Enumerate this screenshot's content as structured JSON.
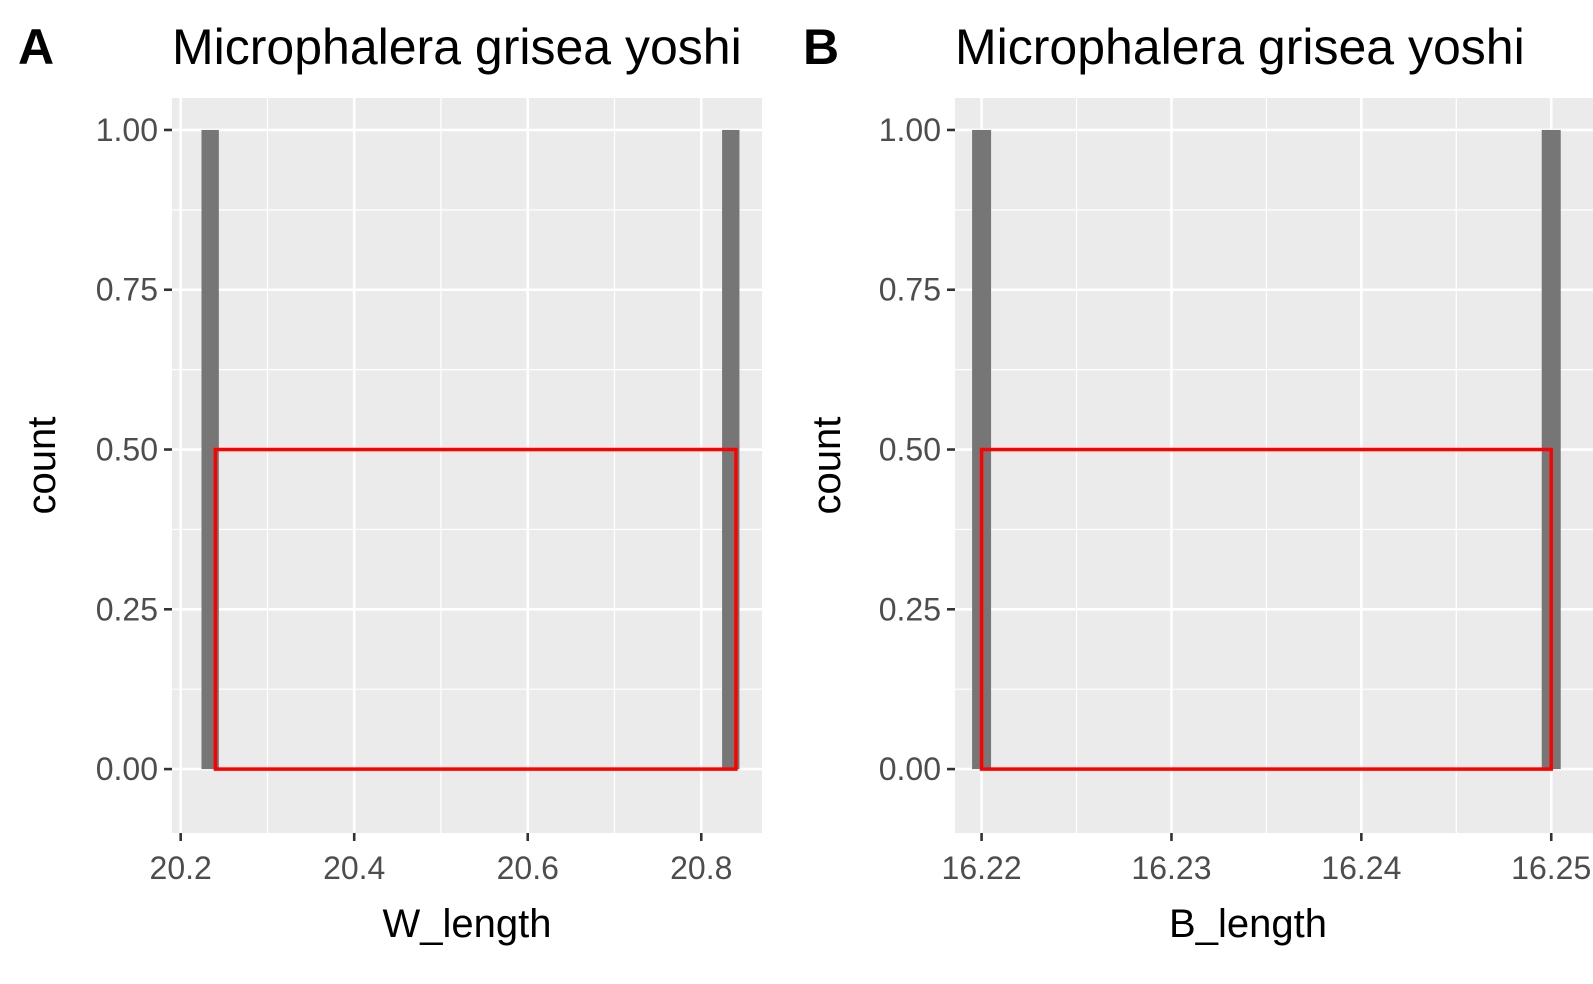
{
  "chart_data": [
    {
      "panel": "A",
      "type": "bar",
      "title": "Microphalera grisea yoshi",
      "xlabel": "W_length",
      "ylabel": "count",
      "xlim": [
        20.19,
        20.87
      ],
      "ylim": [
        -0.1,
        1.05
      ],
      "x_ticks": [
        "20.2",
        "20.4",
        "20.6",
        "20.8"
      ],
      "x_tick_values": [
        20.2,
        20.4,
        20.6,
        20.8
      ],
      "y_ticks": [
        "0.00",
        "0.25",
        "0.50",
        "0.75",
        "1.00"
      ],
      "y_tick_values": [
        0,
        0.25,
        0.5,
        0.75,
        1.0
      ],
      "grid": true,
      "bars": [
        {
          "xmin": 20.224,
          "xmax": 20.244,
          "count": 1
        },
        {
          "xmin": 20.824,
          "xmax": 20.844,
          "count": 1
        }
      ],
      "highlight_box": {
        "xmin": 20.24,
        "xmax": 20.84,
        "ymin": 0,
        "ymax": 0.5
      }
    },
    {
      "panel": "B",
      "type": "bar",
      "title": "Microphalera grisea yoshi",
      "xlabel": "B_length",
      "ylabel": "count",
      "xlim": [
        16.2186,
        16.2522
      ],
      "ylim": [
        -0.1,
        1.05
      ],
      "x_ticks": [
        "16.22",
        "16.23",
        "16.24",
        "16.25"
      ],
      "x_tick_values": [
        16.22,
        16.23,
        16.24,
        16.25
      ],
      "y_ticks": [
        "0.00",
        "0.25",
        "0.50",
        "0.75",
        "1.00"
      ],
      "y_tick_values": [
        0,
        0.25,
        0.5,
        0.75,
        1.0
      ],
      "grid": true,
      "bars": [
        {
          "xmin": 16.2195,
          "xmax": 16.2205,
          "count": 1
        },
        {
          "xmin": 16.2495,
          "xmax": 16.2505,
          "count": 1
        }
      ],
      "highlight_box": {
        "xmin": 16.22,
        "xmax": 16.25,
        "ymin": 0,
        "ymax": 0.5
      }
    }
  ],
  "colors": {
    "panel_background": "#ebebeb",
    "grid": "#ffffff",
    "bar_fill": "#767676",
    "highlight": "#ff0000",
    "tick_text": "#4d4d4d",
    "axis_tick": "#333333",
    "text": "#000000"
  }
}
